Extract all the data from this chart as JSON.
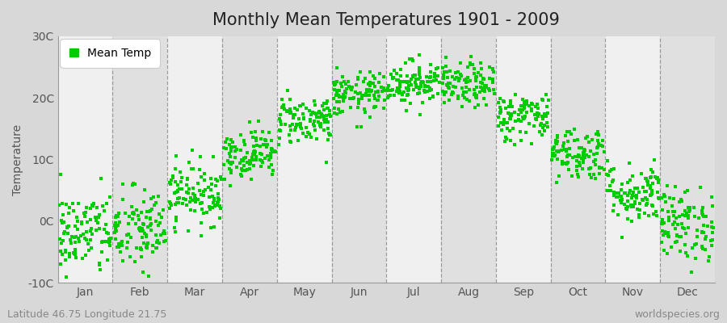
{
  "title": "Monthly Mean Temperatures 1901 - 2009",
  "ylabel": "Temperature",
  "bottom_left_text": "Latitude 46.75 Longitude 21.75",
  "bottom_right_text": "worldspecies.org",
  "legend_label": "Mean Temp",
  "ylim": [
    -10,
    30
  ],
  "yticks": [
    -10,
    0,
    10,
    20,
    30
  ],
  "ytick_labels": [
    "-10C",
    "0C",
    "10C",
    "20C",
    "30C"
  ],
  "months": [
    "Jan",
    "Feb",
    "Mar",
    "Apr",
    "May",
    "Jun",
    "Jul",
    "Aug",
    "Sep",
    "Oct",
    "Nov",
    "Dec"
  ],
  "monthly_means": [
    -2.0,
    -1.5,
    4.5,
    11.0,
    16.5,
    20.5,
    22.5,
    22.0,
    17.0,
    11.0,
    4.5,
    -0.5
  ],
  "monthly_stds": [
    3.5,
    3.5,
    2.5,
    2.0,
    2.0,
    1.8,
    1.8,
    1.8,
    2.0,
    2.2,
    2.5,
    3.0
  ],
  "n_years": 109,
  "start_year": 1901,
  "dot_color": "#00cc00",
  "dot_size": 10,
  "fig_bg_color": "#d8d8d8",
  "plot_bg_color": "#ffffff",
  "band_color_light": "#f0f0f0",
  "band_color_dark": "#e0e0e0",
  "title_fontsize": 15,
  "axis_label_fontsize": 10,
  "tick_fontsize": 10,
  "annotation_fontsize": 9,
  "dashed_line_color": "#888888",
  "seed": 42
}
